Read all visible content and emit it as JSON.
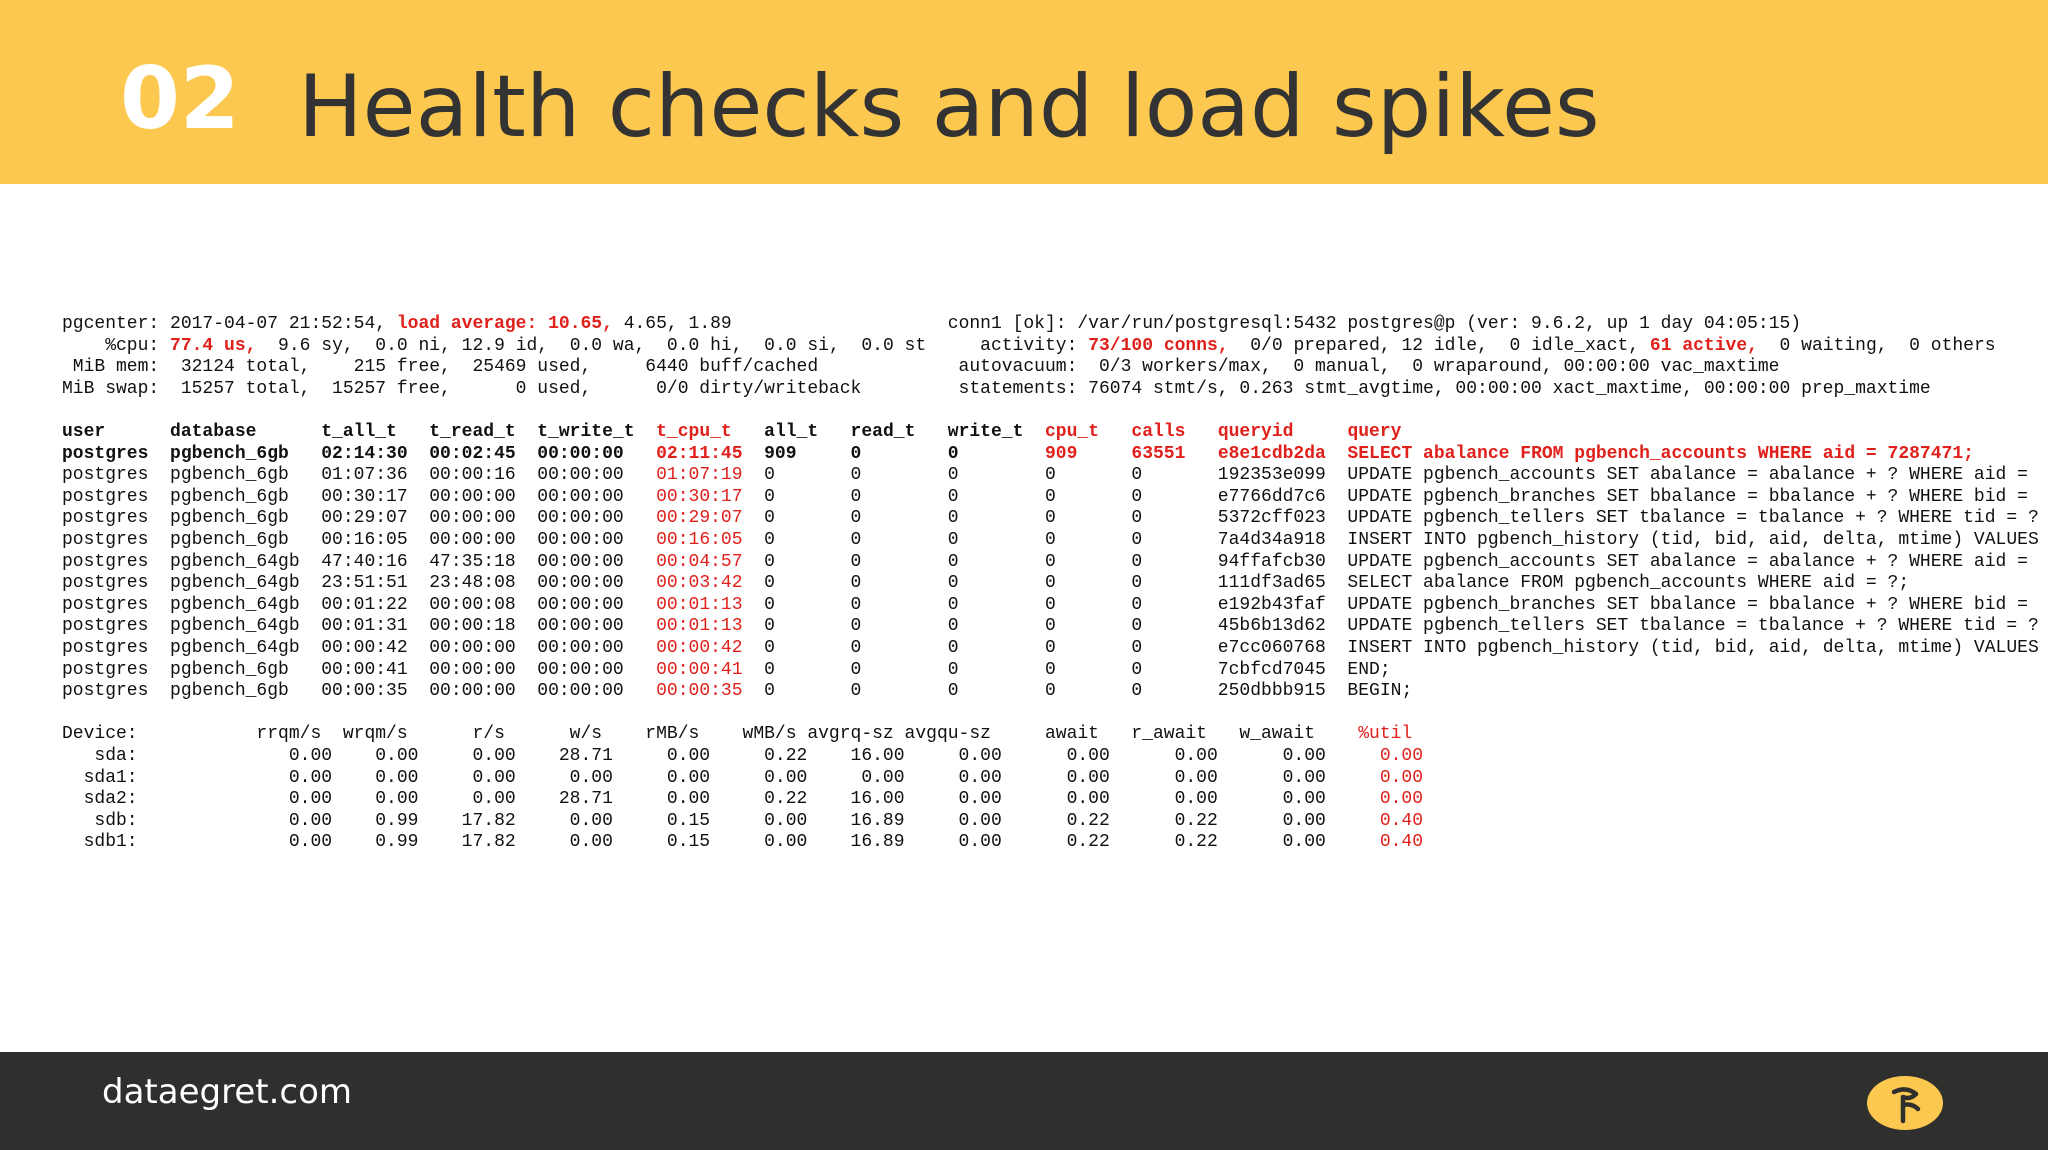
{
  "header": {
    "number": "02",
    "title": "Health checks and load spikes"
  },
  "footer": {
    "site": "dataegret.com",
    "logo_icon": "dataegret-logo-icon"
  },
  "colors": {
    "header_bg": "#fcc850",
    "footer_bg": "#2f2f2e",
    "highlight": "#e0201a"
  },
  "terminal": {
    "summary": [
      [
        {
          "t": "pgcenter: 2017-04-07 21:52:54, "
        },
        {
          "t": "load average: 10.65,",
          "s": "rb"
        },
        {
          "t": " 4.65, 1.89                    conn1 [ok]: /var/run/postgresql:5432 postgres@p (ver: 9.6.2, up 1 day 04:05:15)"
        }
      ],
      [
        {
          "t": "    %cpu: "
        },
        {
          "t": "77.4 us,",
          "s": "rb"
        },
        {
          "t": "  9.6 sy,  0.0 ni, 12.9 id,  0.0 wa,  0.0 hi,  0.0 si,  0.0 st     activity: "
        },
        {
          "t": "73/100 conns,",
          "s": "rb"
        },
        {
          "t": "  0/0 prepared, 12 idle,  0 idle_xact, "
        },
        {
          "t": "61 active,",
          "s": "rb"
        },
        {
          "t": "  0 waiting,  0 others"
        }
      ],
      [
        {
          "t": " MiB mem:  32124 total,    215 free,  25469 used,     6440 buff/cached             autovacuum:  0/3 workers/max,  0 manual,  0 wraparound, 00:00:00 vac_maxtime"
        }
      ],
      [
        {
          "t": "MiB swap:  15257 total,  15257 free,      0 used,      0/0 dirty/writeback         statements: 76074 stmt/s, 0.263 stmt_avgtime, 00:00:00 xact_maxtime, 00:00:00 prep_maxtime"
        }
      ]
    ],
    "queries_header": [
      {
        "t": "user      database      t_all_t   t_read_t  t_write_t  ",
        "s": "b"
      },
      {
        "t": "t_cpu_t",
        "s": "rb"
      },
      {
        "t": "   all_t   read_t   write_t  ",
        "s": "b"
      },
      {
        "t": "cpu_t   calls   queryid     query",
        "s": "rb"
      }
    ],
    "queries_top": [
      {
        "t": "postgres  pgbench_6gb   02:14:30  00:02:45  00:00:00   ",
        "s": "b"
      },
      {
        "t": "02:11:45",
        "s": "rb"
      },
      {
        "t": "  909     0        0        ",
        "s": "b"
      },
      {
        "t": "909     63551   e8e1cdb2da  SELECT abalance FROM pgbench_accounts WHERE aid = 7287471;",
        "s": "rb"
      }
    ],
    "queries_rows": [
      {
        "pre": "postgres  pgbench_6gb   01:07:36  00:00:16  00:00:00   ",
        "cpu": "01:07:19",
        "post": "  0       0        0        0       0       192353e099  UPDATE pgbench_accounts SET abalance = abalance + ? WHERE aid ="
      },
      {
        "pre": "postgres  pgbench_6gb   00:30:17  00:00:00  00:00:00   ",
        "cpu": "00:30:17",
        "post": "  0       0        0        0       0       e7766dd7c6  UPDATE pgbench_branches SET bbalance = bbalance + ? WHERE bid ="
      },
      {
        "pre": "postgres  pgbench_6gb   00:29:07  00:00:00  00:00:00   ",
        "cpu": "00:29:07",
        "post": "  0       0        0        0       0       5372cff023  UPDATE pgbench_tellers SET tbalance = tbalance + ? WHERE tid = ?"
      },
      {
        "pre": "postgres  pgbench_6gb   00:16:05  00:00:00  00:00:00   ",
        "cpu": "00:16:05",
        "post": "  0       0        0        0       0       7a4d34a918  INSERT INTO pgbench_history (tid, bid, aid, delta, mtime) VALUES"
      },
      {
        "pre": "postgres  pgbench_64gb  47:40:16  47:35:18  00:00:00   ",
        "cpu": "00:04:57",
        "post": "  0       0        0        0       0       94ffafcb30  UPDATE pgbench_accounts SET abalance = abalance + ? WHERE aid ="
      },
      {
        "pre": "postgres  pgbench_64gb  23:51:51  23:48:08  00:00:00   ",
        "cpu": "00:03:42",
        "post": "  0       0        0        0       0       111df3ad65  SELECT abalance FROM pgbench_accounts WHERE aid = ?;"
      },
      {
        "pre": "postgres  pgbench_64gb  00:01:22  00:00:08  00:00:00   ",
        "cpu": "00:01:13",
        "post": "  0       0        0        0       0       e192b43faf  UPDATE pgbench_branches SET bbalance = bbalance + ? WHERE bid ="
      },
      {
        "pre": "postgres  pgbench_64gb  00:01:31  00:00:18  00:00:00   ",
        "cpu": "00:01:13",
        "post": "  0       0        0        0       0       45b6b13d62  UPDATE pgbench_tellers SET tbalance = tbalance + ? WHERE tid = ?"
      },
      {
        "pre": "postgres  pgbench_64gb  00:00:42  00:00:00  00:00:00   ",
        "cpu": "00:00:42",
        "post": "  0       0        0        0       0       e7cc060768  INSERT INTO pgbench_history (tid, bid, aid, delta, mtime) VALUES"
      },
      {
        "pre": "postgres  pgbench_6gb   00:00:41  00:00:00  00:00:00   ",
        "cpu": "00:00:41",
        "post": "  0       0        0        0       0       7cbfcd7045  END;"
      },
      {
        "pre": "postgres  pgbench_6gb   00:00:35  00:00:00  00:00:00   ",
        "cpu": "00:00:35",
        "post": "  0       0        0        0       0       250dbbb915  BEGIN;"
      }
    ],
    "devices_header": {
      "pre": "Device:           rrqm/s  wrqm/s      r/s      w/s    rMB/s    wMB/s avgrq-sz avgqu-sz     await   r_await   w_await    ",
      "util": "%util"
    },
    "devices_rows": [
      {
        "pre": "   sda:              0.00    0.00     0.00    28.71     0.00     0.22    16.00     0.00      0.00      0.00      0.00     ",
        "util": "0.00"
      },
      {
        "pre": "  sda1:              0.00    0.00     0.00     0.00     0.00     0.00     0.00     0.00      0.00      0.00      0.00     ",
        "util": "0.00"
      },
      {
        "pre": "  sda2:              0.00    0.00     0.00    28.71     0.00     0.22    16.00     0.00      0.00      0.00      0.00     ",
        "util": "0.00"
      },
      {
        "pre": "   sdb:              0.00    0.99    17.82     0.00     0.15     0.00    16.89     0.00      0.22      0.22      0.00     ",
        "util": "0.40"
      },
      {
        "pre": "  sdb1:              0.00    0.99    17.82     0.00     0.15     0.00    16.89     0.00      0.22      0.22      0.00     ",
        "util": "0.40"
      }
    ]
  }
}
